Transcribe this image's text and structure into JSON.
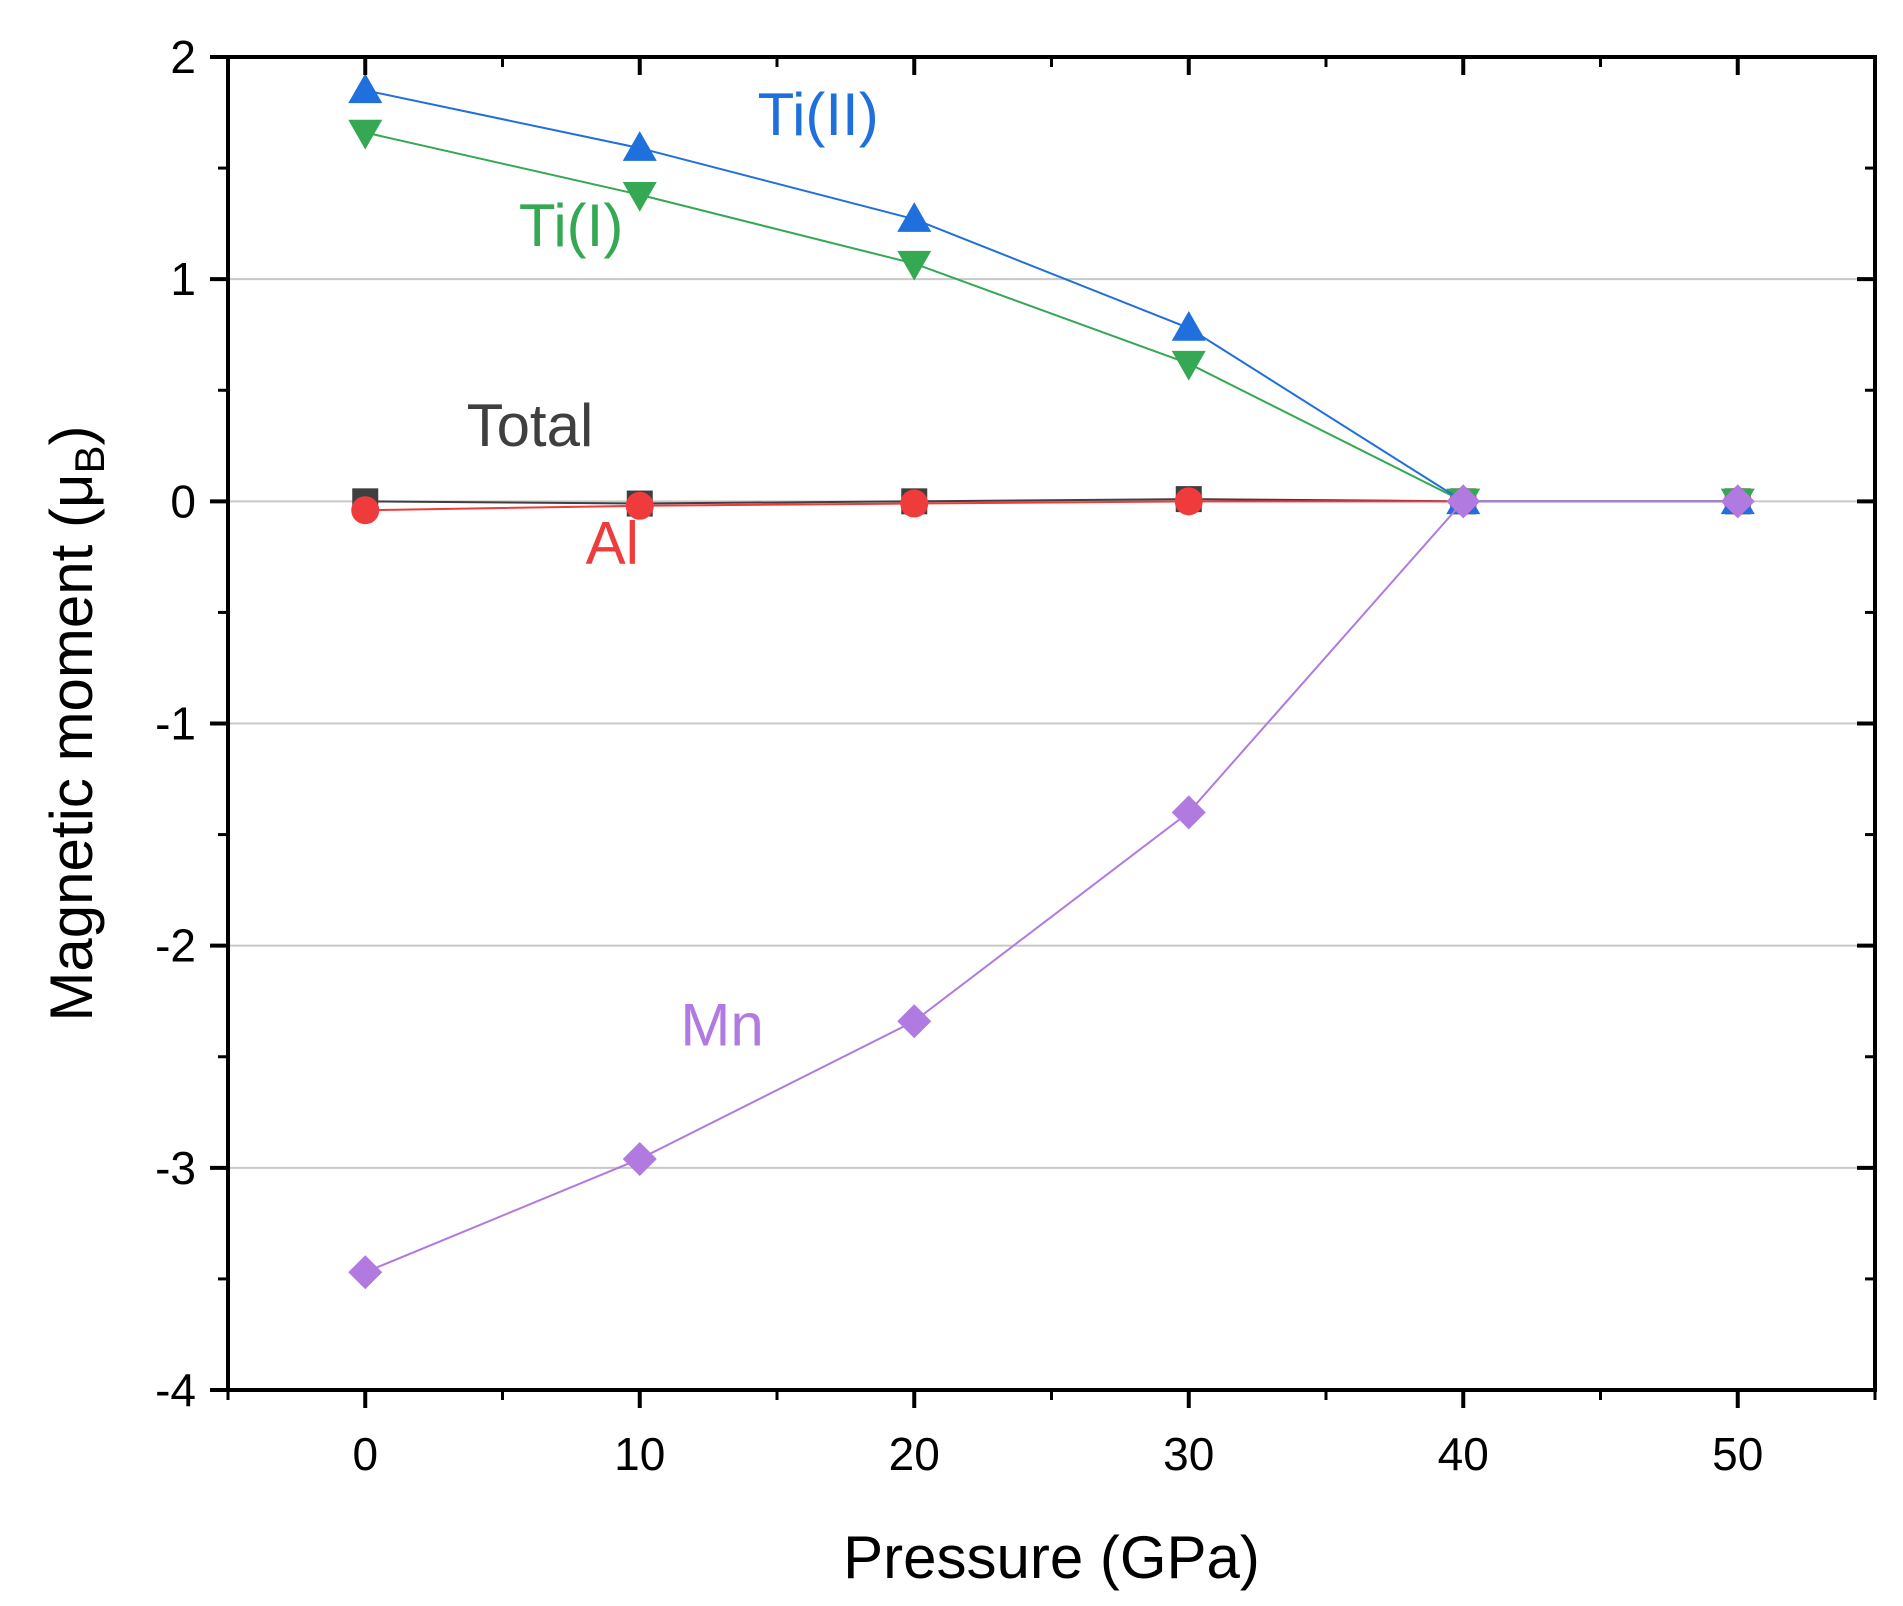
{
  "chart_data": {
    "type": "line",
    "xlabel": "Pressure (GPa)",
    "ylabel_main": "Magnetic moment (μ",
    "ylabel_sub": "B",
    "ylabel_close": ")",
    "xlim": [
      -5,
      55
    ],
    "ylim": [
      -4,
      2
    ],
    "xticks": [
      0,
      10,
      20,
      30,
      40,
      50
    ],
    "yticks": [
      2,
      1,
      0,
      -1,
      -2,
      -3,
      -4
    ],
    "xtick_labels": [
      "0",
      "10",
      "20",
      "30",
      "40",
      "50"
    ],
    "ytick_labels": [
      "2",
      "1",
      "0",
      "-1",
      "-2",
      "-3",
      "-4"
    ],
    "grid": "horizontal",
    "legend": "inline labels",
    "x": [
      0,
      10,
      20,
      30,
      40,
      50
    ],
    "series": [
      {
        "name": "Total",
        "label": "Total",
        "marker": "square",
        "color": "#3f3f3f",
        "values": [
          0.0,
          -0.01,
          0.0,
          0.01,
          0.0,
          0.0
        ],
        "label_at": [
          6,
          0.25
        ]
      },
      {
        "name": "Al",
        "label": "Al",
        "marker": "circle",
        "color": "#ef3b3b",
        "values": [
          -0.04,
          -0.02,
          -0.01,
          0.0,
          0.0,
          0.0
        ],
        "label_at": [
          9,
          -0.28
        ]
      },
      {
        "name": "Ti(I)",
        "label": "Ti(I)",
        "marker": "triangle-down",
        "color": "#34a853",
        "values": [
          1.66,
          1.38,
          1.07,
          0.62,
          0.0,
          0.0
        ],
        "label_at": [
          7.5,
          1.15
        ]
      },
      {
        "name": "Ti(II)",
        "label": "Ti(II)",
        "marker": "triangle-up",
        "color": "#1f6fdc",
        "values": [
          1.85,
          1.59,
          1.27,
          0.78,
          0.0,
          0.0
        ],
        "label_at": [
          16.5,
          1.65
        ]
      },
      {
        "name": "Mn",
        "label": "Mn",
        "marker": "diamond",
        "color": "#b07ae0",
        "values": [
          -3.47,
          -2.96,
          -2.34,
          -1.4,
          0.0,
          0.0
        ],
        "label_at": [
          13,
          -2.45
        ]
      }
    ]
  }
}
